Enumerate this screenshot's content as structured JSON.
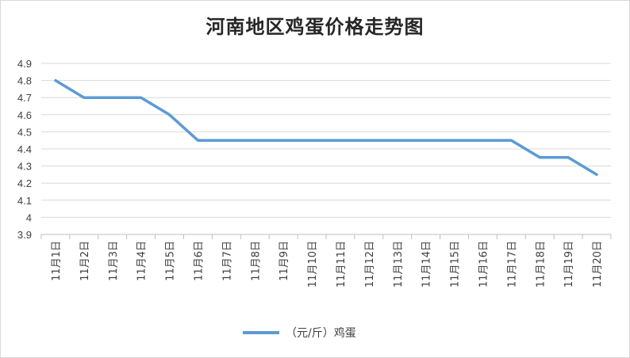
{
  "chart_data": {
    "type": "line",
    "title": "河南地区鸡蛋价格走势图",
    "categories": [
      "11月1日",
      "11月2日",
      "11月3日",
      "11月4日",
      "11月5日",
      "11月6日",
      "11月7日",
      "11月8日",
      "11月9日",
      "11月10日",
      "11月11日",
      "11月12日",
      "11月13日",
      "11月14日",
      "11月15日",
      "11月16日",
      "11月17日",
      "11月18日",
      "11月19日",
      "11月20日"
    ],
    "series": [
      {
        "name": "（元/斤）鸡蛋",
        "color": "#5b9bd5",
        "values": [
          4.8,
          4.7,
          4.7,
          4.7,
          4.6,
          4.45,
          4.45,
          4.45,
          4.45,
          4.45,
          4.45,
          4.45,
          4.45,
          4.45,
          4.45,
          4.45,
          4.45,
          4.35,
          4.35,
          4.25
        ]
      }
    ],
    "yticks": [
      "3.9",
      "4",
      "4.1",
      "4.2",
      "4.3",
      "4.4",
      "4.5",
      "4.6",
      "4.7",
      "4.8",
      "4.9"
    ],
    "ylim": [
      3.9,
      4.9
    ],
    "grid": true,
    "legend": "bottom"
  }
}
